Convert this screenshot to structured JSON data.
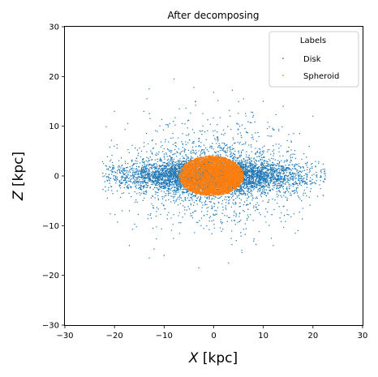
{
  "chart_data": {
    "type": "scatter",
    "title": "After decomposing",
    "xlabel_var": "X",
    "xlabel_unit": " [kpc]",
    "ylabel_var": "Z",
    "ylabel_unit": " [kpc]",
    "xlim": [
      -30,
      30
    ],
    "ylim": [
      -30,
      30
    ],
    "xticks": [
      -30,
      -20,
      -10,
      0,
      10,
      20,
      30
    ],
    "yticks": [
      -30,
      -20,
      -10,
      0,
      10,
      20,
      30
    ],
    "grid": false,
    "legend": {
      "title": "Labels",
      "placement": "top-right",
      "entries": [
        "Disk",
        "Spheroid"
      ]
    },
    "series": [
      {
        "name": "Disk",
        "color": "#1f77b4",
        "distribution": {
          "x_center": 0,
          "x_spread": 9.0,
          "x_max": 22.5,
          "z_center": 0,
          "z_spread_core": 1.6,
          "z_spread_halo": 5.5,
          "z_max": 19.5
        },
        "sample_points": [
          [
            -13,
            17.5
          ],
          [
            -8,
            19.5
          ],
          [
            -4,
            17.8
          ],
          [
            0,
            16.8
          ],
          [
            6,
            15.5
          ],
          [
            10,
            15
          ],
          [
            14,
            14
          ],
          [
            -20,
            13
          ],
          [
            20,
            12
          ],
          [
            -22,
            0
          ],
          [
            22.5,
            0
          ],
          [
            -17,
            -14
          ],
          [
            -13,
            -16.5
          ],
          [
            -10,
            -16
          ],
          [
            -3,
            -18.5
          ],
          [
            3,
            -17.5
          ],
          [
            12,
            -14
          ],
          [
            17,
            -11
          ]
        ]
      },
      {
        "name": "Spheroid",
        "color": "#ff7f0e",
        "distribution": {
          "x_center": -0.5,
          "x_radius": 6.5,
          "z_center": 0,
          "z_radius": 4.0
        },
        "sample_points": [
          [
            -7,
            0
          ],
          [
            6,
            0
          ],
          [
            -1,
            4
          ],
          [
            0,
            -4
          ]
        ]
      }
    ]
  }
}
